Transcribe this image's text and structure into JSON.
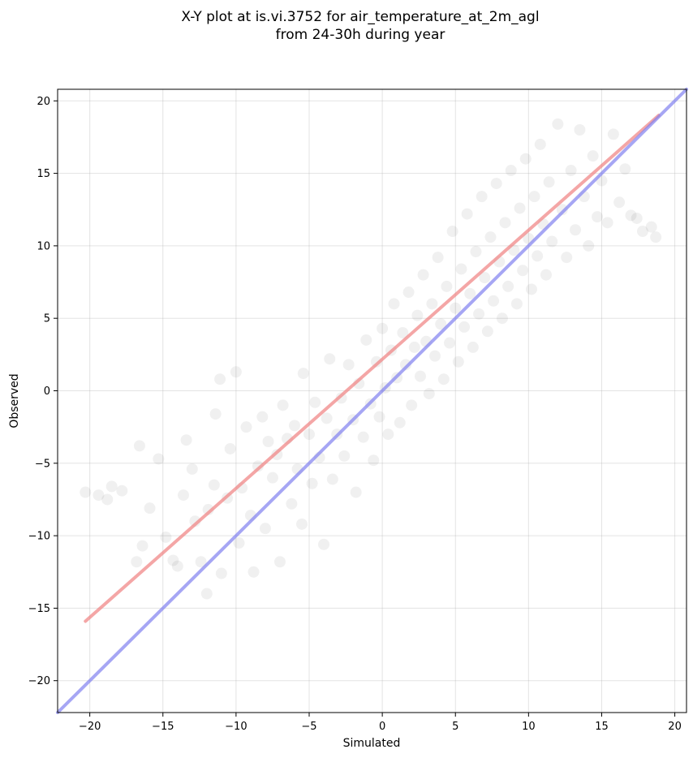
{
  "chart_data": {
    "type": "scatter",
    "title_line1": "X-Y plot at is.vi.3752 for air_temperature_at_2m_agl",
    "title_line2": "from 24-30h during year",
    "xlabel": "Simulated",
    "ylabel": "Observed",
    "xlim": [
      -22.2,
      20.8
    ],
    "ylim": [
      -22.2,
      20.8
    ],
    "xticks": [
      -20,
      -15,
      -10,
      -5,
      0,
      5,
      10,
      15,
      20
    ],
    "yticks": [
      -20,
      -15,
      -10,
      -5,
      0,
      5,
      10,
      15,
      20
    ],
    "xtick_labels": [
      "−20",
      "−15",
      "−10",
      "−5",
      "0",
      "5",
      "10",
      "15",
      "20"
    ],
    "ytick_labels": [
      "−20",
      "−15",
      "−10",
      "−5",
      "0",
      "5",
      "10",
      "15",
      "20"
    ],
    "grid": true,
    "series": [
      {
        "kind": "regression-line",
        "color": "#f08080",
        "x": [
          -20.3,
          18.9
        ],
        "y": [
          -15.9,
          19.0
        ]
      },
      {
        "kind": "one-to-one-line",
        "color": "#8080f0",
        "x": [
          -22.2,
          20.8
        ],
        "y": [
          -22.2,
          20.8
        ]
      },
      {
        "kind": "scatter-sample",
        "color": "#000000",
        "opacity": 0.06,
        "points": [
          [
            -20.3,
            -7.0
          ],
          [
            -19.4,
            -7.2
          ],
          [
            -18.5,
            -6.6
          ],
          [
            -18.8,
            -7.5
          ],
          [
            -17.8,
            -6.9
          ],
          [
            -16.6,
            -3.8
          ],
          [
            -16.4,
            -10.7
          ],
          [
            -16.8,
            -11.8
          ],
          [
            -15.9,
            -8.1
          ],
          [
            -15.3,
            -4.7
          ],
          [
            -14.8,
            -10.1
          ],
          [
            -14.3,
            -11.7
          ],
          [
            -14.0,
            -12.1
          ],
          [
            -13.6,
            -7.2
          ],
          [
            -13.4,
            -3.4
          ],
          [
            -13.0,
            -5.4
          ],
          [
            -12.8,
            -9.0
          ],
          [
            -12.4,
            -11.8
          ],
          [
            -12.0,
            -14.0
          ],
          [
            -11.9,
            -8.2
          ],
          [
            -11.5,
            -6.5
          ],
          [
            -11.4,
            -1.6
          ],
          [
            -11.1,
            0.8
          ],
          [
            -11.0,
            -12.6
          ],
          [
            -10.6,
            -7.4
          ],
          [
            -10.4,
            -4.0
          ],
          [
            -10.0,
            1.3
          ],
          [
            -9.8,
            -10.5
          ],
          [
            -9.6,
            -6.7
          ],
          [
            -9.3,
            -2.5
          ],
          [
            -9.0,
            -8.6
          ],
          [
            -8.8,
            -12.5
          ],
          [
            -8.5,
            -5.2
          ],
          [
            -8.2,
            -1.8
          ],
          [
            -8.0,
            -9.5
          ],
          [
            -7.8,
            -3.5
          ],
          [
            -7.5,
            -6.0
          ],
          [
            -7.2,
            -4.4
          ],
          [
            -7.0,
            -11.8
          ],
          [
            -6.8,
            -1.0
          ],
          [
            -6.5,
            -3.3
          ],
          [
            -6.2,
            -7.8
          ],
          [
            -6.0,
            -2.4
          ],
          [
            -5.8,
            -5.4
          ],
          [
            -5.5,
            -9.2
          ],
          [
            -5.4,
            1.2
          ],
          [
            -5.0,
            -3.0
          ],
          [
            -4.8,
            -6.4
          ],
          [
            -4.6,
            -0.8
          ],
          [
            -4.3,
            -4.6
          ],
          [
            -4.0,
            -10.6
          ],
          [
            -3.8,
            -1.9
          ],
          [
            -3.6,
            2.2
          ],
          [
            -3.4,
            -6.1
          ],
          [
            -3.1,
            -3.0
          ],
          [
            -2.8,
            -0.5
          ],
          [
            -2.6,
            -4.5
          ],
          [
            -2.3,
            1.8
          ],
          [
            -2.0,
            -2.0
          ],
          [
            -1.8,
            -7.0
          ],
          [
            -1.6,
            0.5
          ],
          [
            -1.3,
            -3.2
          ],
          [
            -1.1,
            3.5
          ],
          [
            -0.8,
            -0.9
          ],
          [
            -0.6,
            -4.8
          ],
          [
            -0.4,
            2.0
          ],
          [
            -0.2,
            -1.8
          ],
          [
            0.0,
            4.3
          ],
          [
            0.2,
            0.2
          ],
          [
            0.4,
            -3.0
          ],
          [
            0.6,
            2.8
          ],
          [
            0.8,
            6.0
          ],
          [
            1.0,
            0.9
          ],
          [
            1.2,
            -2.2
          ],
          [
            1.4,
            4.0
          ],
          [
            1.6,
            1.8
          ],
          [
            1.8,
            6.8
          ],
          [
            2.0,
            -1.0
          ],
          [
            2.2,
            3.0
          ],
          [
            2.4,
            5.2
          ],
          [
            2.6,
            1.0
          ],
          [
            2.8,
            8.0
          ],
          [
            3.0,
            3.4
          ],
          [
            3.2,
            -0.2
          ],
          [
            3.4,
            6.0
          ],
          [
            3.6,
            2.4
          ],
          [
            3.8,
            9.2
          ],
          [
            4.0,
            4.6
          ],
          [
            4.2,
            0.8
          ],
          [
            4.4,
            7.2
          ],
          [
            4.6,
            3.3
          ],
          [
            4.8,
            11.0
          ],
          [
            5.0,
            5.7
          ],
          [
            5.2,
            2.0
          ],
          [
            5.4,
            8.4
          ],
          [
            5.6,
            4.4
          ],
          [
            5.8,
            12.2
          ],
          [
            6.0,
            6.7
          ],
          [
            6.2,
            3.0
          ],
          [
            6.4,
            9.6
          ],
          [
            6.6,
            5.3
          ],
          [
            6.8,
            13.4
          ],
          [
            7.0,
            7.8
          ],
          [
            7.2,
            4.1
          ],
          [
            7.4,
            10.6
          ],
          [
            7.6,
            6.2
          ],
          [
            7.8,
            14.3
          ],
          [
            8.0,
            8.9
          ],
          [
            8.2,
            5.0
          ],
          [
            8.4,
            11.6
          ],
          [
            8.6,
            7.2
          ],
          [
            8.8,
            15.2
          ],
          [
            9.0,
            9.7
          ],
          [
            9.2,
            6.0
          ],
          [
            9.4,
            12.6
          ],
          [
            9.6,
            8.3
          ],
          [
            9.8,
            16.0
          ],
          [
            10.0,
            10.5
          ],
          [
            10.2,
            7.0
          ],
          [
            10.4,
            13.4
          ],
          [
            10.6,
            9.3
          ],
          [
            10.8,
            17.0
          ],
          [
            11.0,
            11.5
          ],
          [
            11.2,
            8.0
          ],
          [
            11.4,
            14.4
          ],
          [
            11.6,
            10.3
          ],
          [
            12.0,
            18.4
          ],
          [
            12.3,
            12.5
          ],
          [
            12.6,
            9.2
          ],
          [
            12.9,
            15.2
          ],
          [
            13.2,
            11.1
          ],
          [
            13.5,
            18.0
          ],
          [
            13.8,
            13.4
          ],
          [
            14.1,
            10.0
          ],
          [
            14.4,
            16.2
          ],
          [
            14.7,
            12.0
          ],
          [
            15.0,
            14.5
          ],
          [
            15.4,
            11.6
          ],
          [
            15.8,
            17.7
          ],
          [
            16.2,
            13.0
          ],
          [
            16.6,
            15.3
          ],
          [
            17.0,
            12.1
          ],
          [
            17.4,
            11.9
          ],
          [
            17.8,
            11.0
          ],
          [
            18.4,
            11.3
          ],
          [
            18.7,
            10.6
          ]
        ]
      }
    ]
  }
}
